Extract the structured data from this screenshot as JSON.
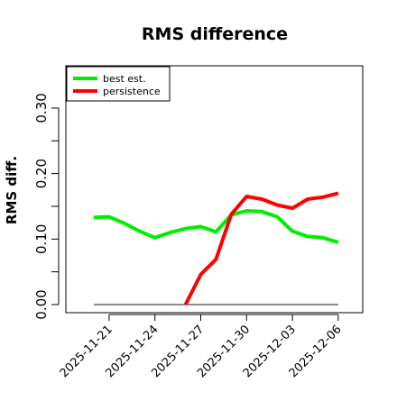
{
  "chart_data": {
    "type": "line",
    "title": "RMS difference",
    "xlabel": "",
    "ylabel": "RMS diff.",
    "x": [
      "2025-11-20",
      "2025-11-21",
      "2025-11-22",
      "2025-11-23",
      "2025-11-24",
      "2025-11-25",
      "2025-11-26",
      "2025-11-27",
      "2025-11-28",
      "2025-11-29",
      "2025-11-30",
      "2025-12-01",
      "2025-12-02",
      "2025-12-03",
      "2025-12-04",
      "2025-12-05",
      "2025-12-06"
    ],
    "x_ticks": [
      "2025-11-21",
      "2025-11-24",
      "2025-11-27",
      "2025-11-30",
      "2025-12-03",
      "2025-12-06"
    ],
    "y_ticks": [
      "0.00",
      "0.10",
      "0.20",
      "0.30"
    ],
    "ylim": [
      -0.01,
      0.37
    ],
    "grid": false,
    "legend_position": "top-left",
    "series": [
      {
        "name": "best est.",
        "color": "#00ee00",
        "values": [
          0.133,
          0.134,
          0.124,
          0.112,
          0.102,
          0.11,
          0.116,
          0.119,
          0.111,
          0.137,
          0.143,
          0.142,
          0.134,
          0.112,
          0.104,
          0.102,
          0.095
        ]
      },
      {
        "name": "persistence",
        "color": "#ff0000",
        "values": [
          null,
          null,
          null,
          null,
          null,
          null,
          0.0,
          0.046,
          0.069,
          0.138,
          0.165,
          0.161,
          0.152,
          0.147,
          0.161,
          0.164,
          0.17
        ]
      }
    ],
    "reference_line": {
      "value": 0.0,
      "color": "#666666"
    }
  }
}
